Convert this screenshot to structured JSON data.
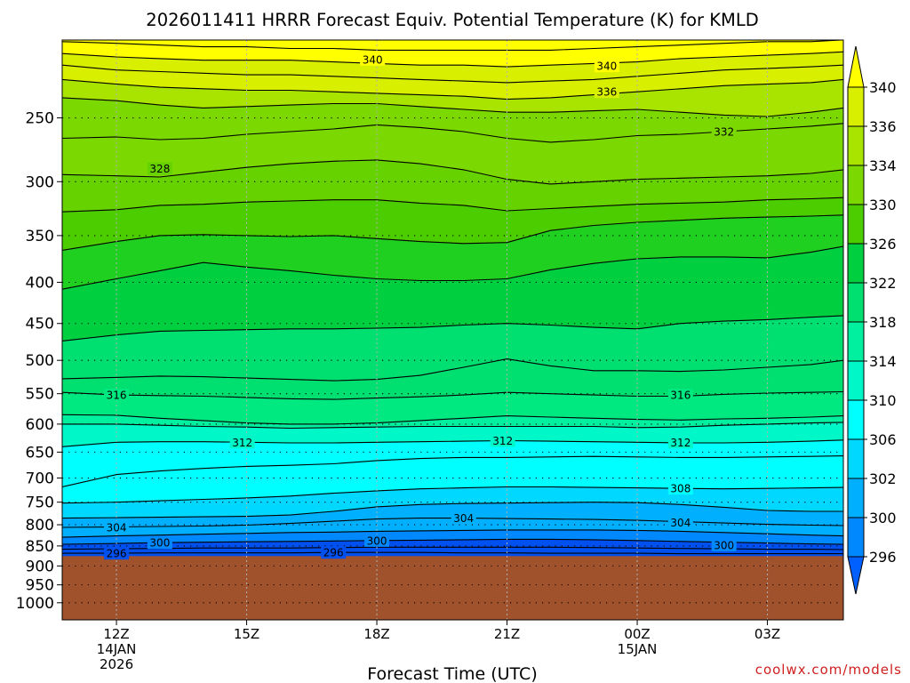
{
  "chart_data": {
    "type": "contour",
    "title": "2026011411 HRRR Forecast Equiv. Potential Temperature (K) for KMLD",
    "xlabel": "Forecast Time (UTC)",
    "credit": "coolwx.com/models",
    "y_axis": {
      "scale": "log-pressure",
      "range_hPa": [
        1050,
        200
      ],
      "ticks": [
        "250",
        "300",
        "350",
        "400",
        "450",
        "500",
        "550",
        "600",
        "650",
        "700",
        "750",
        "800",
        "850",
        "900",
        "950",
        "1000"
      ]
    },
    "x_axis": {
      "range_hours": [
        10.75,
        28.75
      ],
      "ticks": [
        {
          "hour": 12,
          "line1": "12Z",
          "line2": "14JAN",
          "line3": "2026"
        },
        {
          "hour": 15,
          "line1": "15Z",
          "line2": "",
          "line3": ""
        },
        {
          "hour": 18,
          "line1": "18Z",
          "line2": "",
          "line3": ""
        },
        {
          "hour": 21,
          "line1": "21Z",
          "line2": "",
          "line3": ""
        },
        {
          "hour": 24,
          "line1": "00Z",
          "line2": "15JAN",
          "line3": ""
        },
        {
          "hour": 27,
          "line1": "03Z",
          "line2": "",
          "line3": ""
        }
      ]
    },
    "grid": true,
    "ground_pressure_hPa": 875,
    "ground_color": "#a0522d",
    "colorbar": {
      "labels": [
        "340",
        "336",
        "334",
        "330",
        "326",
        "322",
        "318",
        "314",
        "310",
        "306",
        "302",
        "300",
        "296"
      ],
      "band_colors": [
        "#ffff00",
        "#d8f000",
        "#a8e400",
        "#7bd800",
        "#4ccd00",
        "#00d040",
        "#00e070",
        "#00f0a0",
        "#00f8c8",
        "#00ffff",
        "#00d8ff",
        "#00b0ff",
        "#0088ff",
        "#0060ff"
      ]
    },
    "level_colors": [
      {
        "k": 296,
        "color": "#0050f0"
      },
      {
        "k": 300,
        "color": "#0088ff"
      },
      {
        "k": 302,
        "color": "#00b0ff"
      },
      {
        "k": 306,
        "color": "#00d8ff"
      },
      {
        "k": 308,
        "color": "#00ffff"
      },
      {
        "k": 312,
        "color": "#00f8c8"
      },
      {
        "k": 314,
        "color": "#00f0a0"
      },
      {
        "k": 316,
        "color": "#00e880"
      },
      {
        "k": 318,
        "color": "#00e070"
      },
      {
        "k": 322,
        "color": "#00d040"
      },
      {
        "k": 324,
        "color": "#20d020"
      },
      {
        "k": 326,
        "color": "#4ccd00"
      },
      {
        "k": 328,
        "color": "#66d200"
      },
      {
        "k": 330,
        "color": "#7bd800"
      },
      {
        "k": 334,
        "color": "#a8e400"
      },
      {
        "k": 336,
        "color": "#d8f000"
      },
      {
        "k": 340,
        "color": "#ffff00"
      }
    ],
    "x_hours": [
      10.75,
      12,
      13,
      14,
      15,
      16,
      17,
      18,
      19,
      20,
      21,
      22,
      23,
      24,
      25,
      26,
      27,
      28,
      28.75
    ],
    "contours": [
      {
        "k": 342,
        "p": [
          201,
          202,
          203,
          204,
          204,
          205,
          205,
          206,
          206,
          206,
          206,
          206,
          205,
          204,
          203,
          202,
          201,
          201,
          200
        ]
      },
      {
        "k": 340,
        "p": [
          208,
          210,
          211,
          212,
          212,
          212,
          213,
          214,
          215,
          215,
          216,
          215,
          214,
          213,
          211,
          210,
          209,
          208,
          207
        ]
      },
      {
        "k": 338,
        "p": [
          215,
          218,
          219,
          220,
          221,
          221,
          222,
          223,
          224,
          225,
          226,
          225,
          224,
          222,
          220,
          218,
          217,
          216,
          215
        ]
      },
      {
        "k": 336,
        "p": [
          224,
          227,
          229,
          230,
          231,
          231,
          232,
          233,
          234,
          235,
          237,
          236,
          234,
          232,
          230,
          228,
          227,
          226,
          224
        ]
      },
      {
        "k": 334,
        "p": [
          236,
          238,
          241,
          243,
          242,
          241,
          240,
          240,
          242,
          244,
          246,
          246,
          245,
          244,
          246,
          248,
          249,
          246,
          243
        ]
      },
      {
        "k": 332,
        "p": [
          265,
          264,
          266,
          265,
          262,
          260,
          258,
          255,
          257,
          260,
          265,
          268,
          266,
          263,
          262,
          260,
          258,
          256,
          254
        ]
      },
      {
        "k": 330,
        "p": [
          294,
          295,
          296,
          292,
          288,
          285,
          283,
          282,
          285,
          290,
          298,
          302,
          300,
          298,
          297,
          296,
          295,
          293,
          290
        ]
      },
      {
        "k": 328,
        "p": [
          327,
          325,
          321,
          320,
          318,
          317,
          316,
          316,
          319,
          321,
          326,
          324,
          322,
          320,
          319,
          318,
          316,
          315,
          314
        ]
      },
      {
        "k": 326,
        "p": [
          365,
          356,
          350,
          349,
          350,
          351,
          350,
          353,
          356,
          358,
          357,
          345,
          340,
          337,
          335,
          333,
          332,
          331,
          330
        ]
      },
      {
        "k": 324,
        "p": [
          408,
          396,
          387,
          378,
          383,
          387,
          392,
          396,
          398,
          398,
          396,
          386,
          379,
          374,
          372,
          372,
          373,
          367,
          361
        ]
      },
      {
        "k": 322,
        "p": [
          473,
          465,
          460,
          459,
          458,
          457,
          457,
          456,
          455,
          452,
          450,
          452,
          455,
          457,
          450,
          447,
          445,
          442,
          440
        ]
      },
      {
        "k": 320,
        "p": [
          527,
          525,
          523,
          524,
          526,
          528,
          530,
          528,
          522,
          510,
          498,
          508,
          515,
          515,
          516,
          514,
          510,
          506,
          500
        ]
      },
      {
        "k": 318,
        "p": [
          548,
          552,
          553,
          554,
          556,
          558,
          559,
          557,
          555,
          552,
          548,
          550,
          552,
          554,
          554,
          551,
          549,
          548,
          547
        ]
      },
      {
        "k": 316,
        "p": [
          584,
          585,
          590,
          594,
          598,
          600,
          600,
          598,
          594,
          590,
          586,
          588,
          590,
          592,
          593,
          591,
          590,
          588,
          586
        ]
      },
      {
        "k": 314,
        "p": [
          600,
          600,
          602,
          604,
          605,
          607,
          606,
          605,
          604,
          604,
          604,
          604,
          604,
          606,
          605,
          602,
          600,
          598,
          597
        ]
      },
      {
        "k": 312,
        "p": [
          640,
          632,
          631,
          631,
          632,
          633,
          633,
          632,
          631,
          630,
          629,
          630,
          631,
          632,
          633,
          633,
          632,
          630,
          628
        ]
      },
      {
        "k": 310,
        "p": [
          718,
          693,
          686,
          681,
          677,
          675,
          672,
          666,
          662,
          660,
          660,
          659,
          658,
          659,
          660,
          660,
          659,
          658,
          657
        ]
      },
      {
        "k": 308,
        "p": [
          752,
          750,
          747,
          744,
          741,
          737,
          731,
          726,
          722,
          720,
          718,
          718,
          719,
          720,
          721,
          722,
          721,
          720,
          719
        ]
      },
      {
        "k": 306,
        "p": [
          785,
          784,
          783,
          782,
          781,
          778,
          770,
          760,
          755,
          753,
          752,
          751,
          750,
          751,
          755,
          761,
          768,
          770,
          770
        ]
      },
      {
        "k": 304,
        "p": [
          806,
          805,
          804,
          803,
          801,
          797,
          792,
          787,
          785,
          785,
          786,
          787,
          788,
          790,
          793,
          796,
          799,
          801,
          802
        ]
      },
      {
        "k": 302,
        "p": [
          829,
          826,
          824,
          822,
          820,
          818,
          817,
          815,
          814,
          813,
          812,
          812,
          812,
          813,
          815,
          818,
          821,
          824,
          826
        ]
      },
      {
        "k": 300,
        "p": [
          846,
          844,
          842,
          841,
          840,
          839,
          838,
          837,
          836,
          835,
          834,
          834,
          835,
          837,
          839,
          841,
          843,
          845,
          846
        ]
      },
      {
        "k": 298,
        "p": [
          858,
          857,
          856,
          855,
          855,
          855,
          854,
          853,
          853,
          853,
          853,
          853,
          854,
          855,
          856,
          857,
          858,
          858,
          859
        ]
      },
      {
        "k": 296,
        "p": [
          868,
          868,
          867,
          867,
          867,
          867,
          866,
          866,
          866,
          867,
          867,
          868,
          868,
          868,
          869,
          869,
          869,
          869,
          869
        ]
      }
    ],
    "contour_labels": [
      {
        "k": 340,
        "hour": 17.9,
        "p": 211.5,
        "text": "340"
      },
      {
        "k": 340,
        "hour": 23.3,
        "p": 215.5,
        "text": "340"
      },
      {
        "k": 336,
        "hour": 23.3,
        "p": 232,
        "text": "336"
      },
      {
        "k": 332,
        "hour": 26.0,
        "p": 260,
        "text": "332"
      },
      {
        "k": 328,
        "hour": 13.0,
        "p": 289,
        "text": "328"
      },
      {
        "k": 316,
        "hour": 12.0,
        "p": 552,
        "text": "316"
      },
      {
        "k": 316,
        "hour": 25.0,
        "p": 552,
        "text": "316"
      },
      {
        "k": 312,
        "hour": 14.9,
        "p": 632,
        "text": "312"
      },
      {
        "k": 312,
        "hour": 20.9,
        "p": 629,
        "text": "312"
      },
      {
        "k": 312,
        "hour": 25.0,
        "p": 632,
        "text": "312"
      },
      {
        "k": 308,
        "hour": 25.0,
        "p": 721,
        "text": "308"
      },
      {
        "k": 304,
        "hour": 12.0,
        "p": 806,
        "text": "304"
      },
      {
        "k": 304,
        "hour": 20.0,
        "p": 785,
        "text": "304"
      },
      {
        "k": 304,
        "hour": 25.0,
        "p": 795,
        "text": "304"
      },
      {
        "k": 300,
        "hour": 13.0,
        "p": 842,
        "text": "300"
      },
      {
        "k": 300,
        "hour": 18.0,
        "p": 837,
        "text": "300"
      },
      {
        "k": 300,
        "hour": 26.0,
        "p": 848,
        "text": "300"
      },
      {
        "k": 296,
        "hour": 12.0,
        "p": 868,
        "text": "296"
      },
      {
        "k": 296,
        "hour": 17.0,
        "p": 866,
        "text": "296"
      }
    ]
  }
}
